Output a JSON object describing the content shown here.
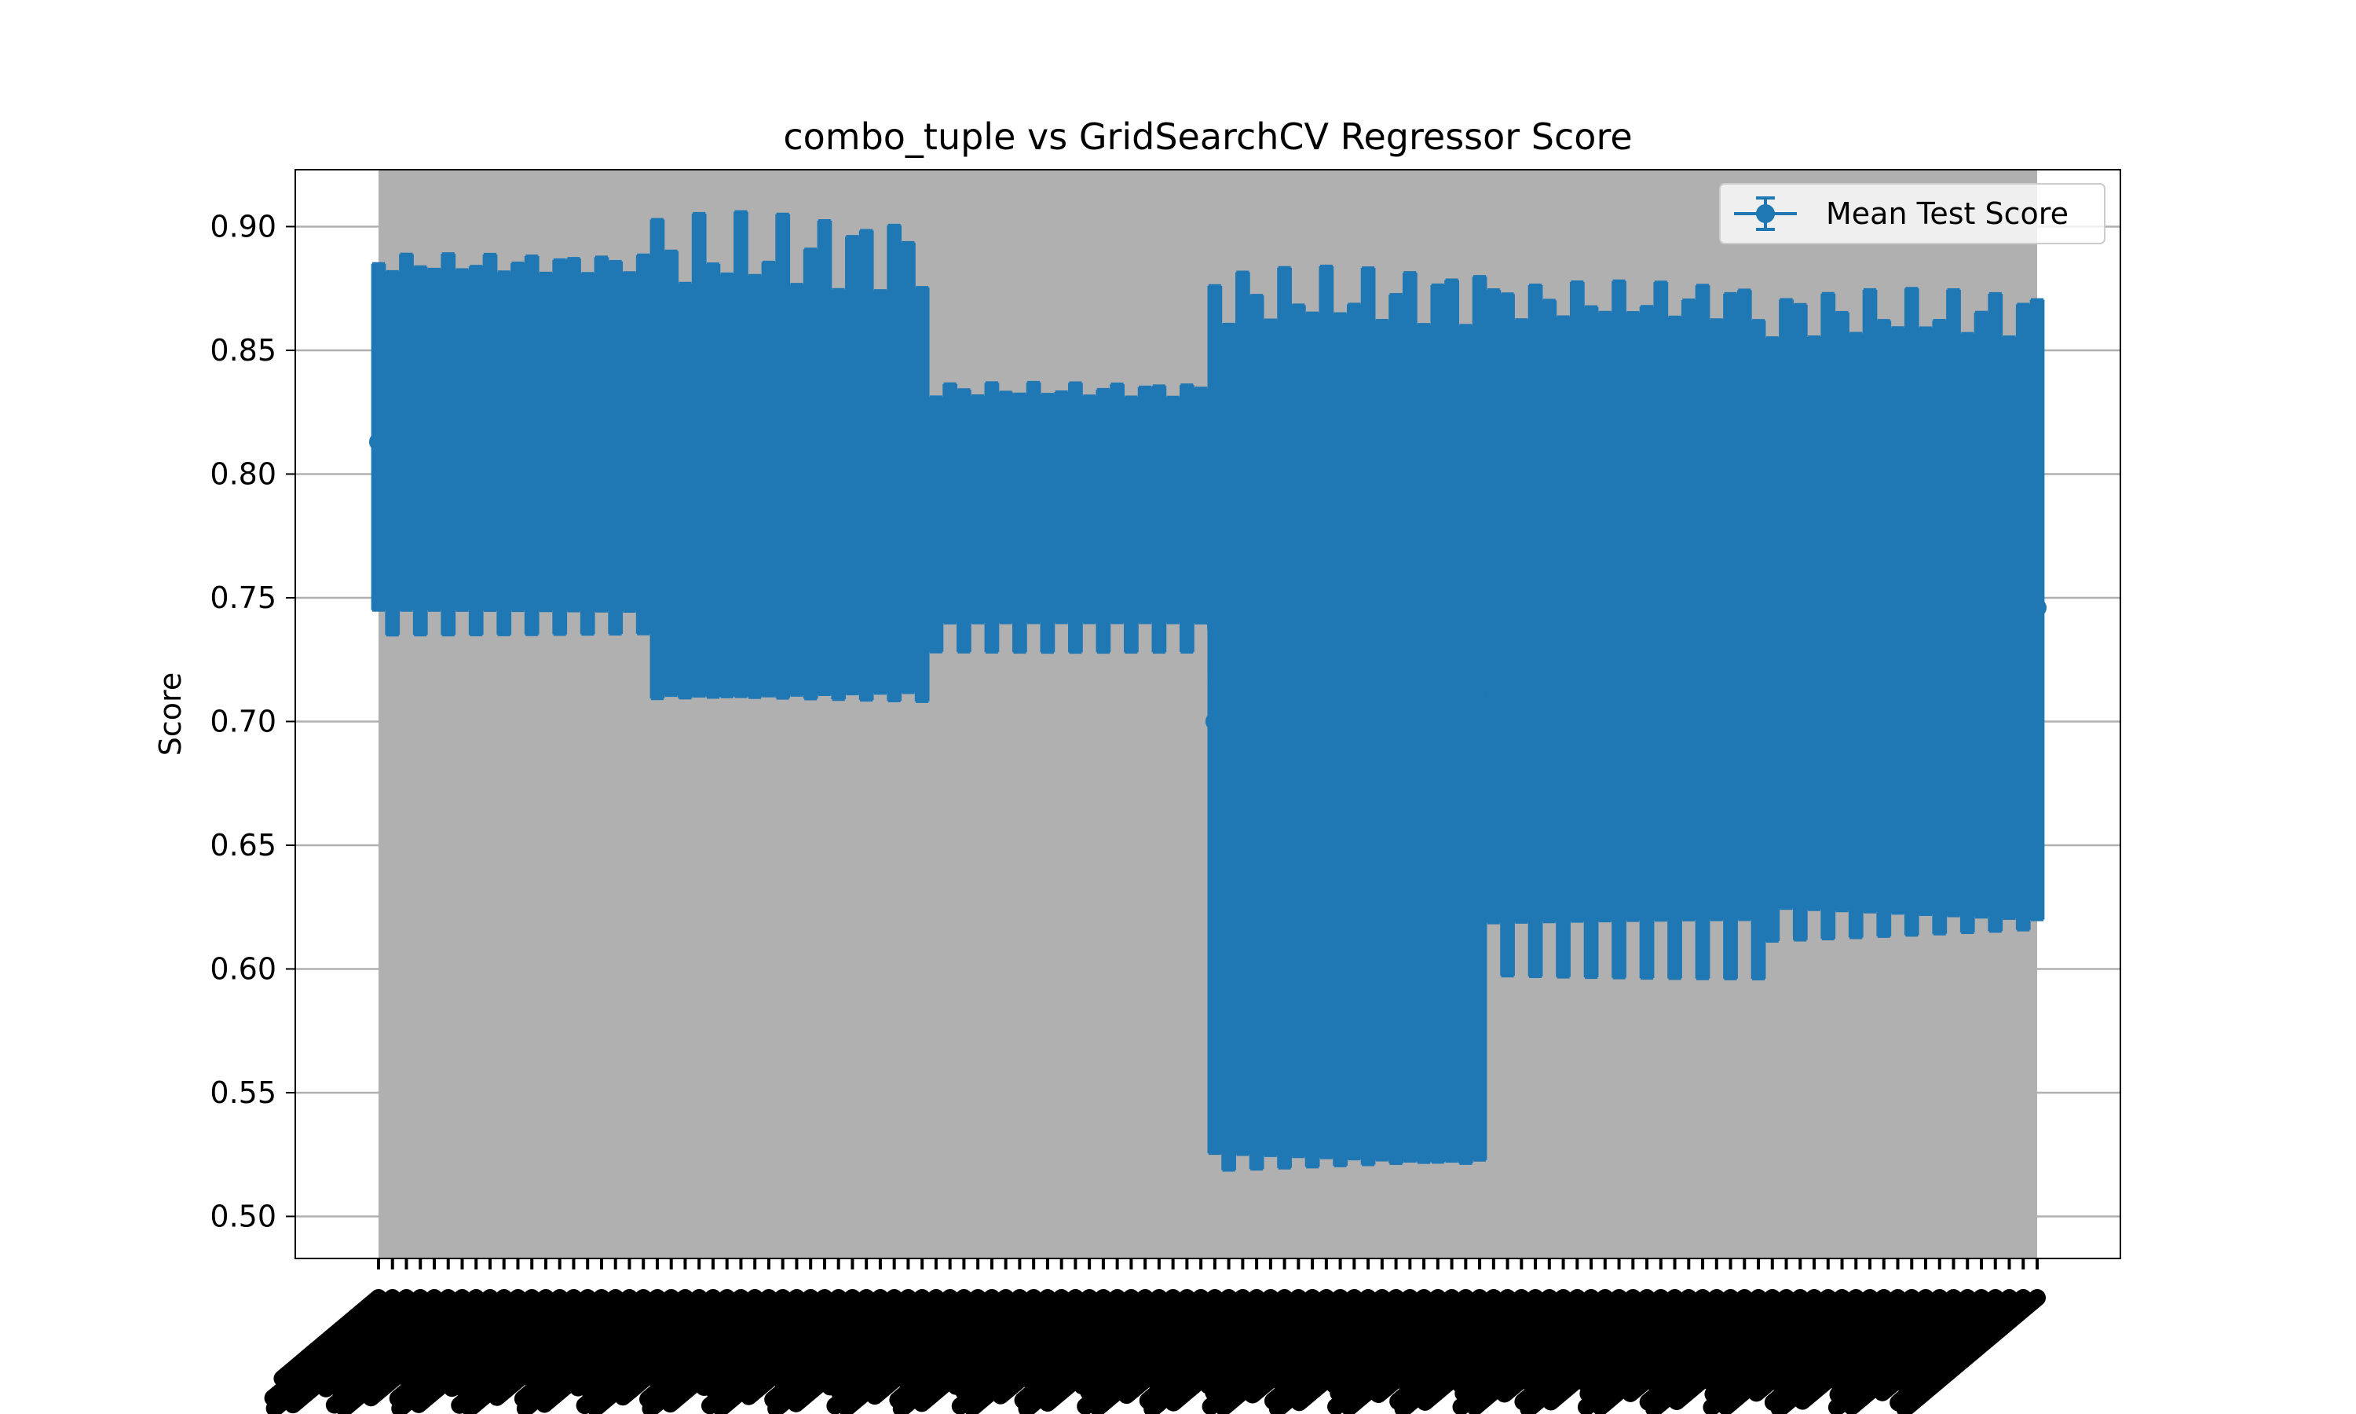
{
  "chart_data": {
    "type": "scatter",
    "title": "combo_tuple vs GridSearchCV Regressor Score",
    "xlabel": "",
    "ylabel": "Score",
    "ylim": [
      0.483,
      0.923
    ],
    "yticks": [
      "0.50",
      "0.55",
      "0.60",
      "0.65",
      "0.70",
      "0.75",
      "0.80",
      "0.85",
      "0.90"
    ],
    "grid": "y",
    "legend": "top-right",
    "colors": {
      "series": "#1f77b4",
      "background": "#b0b0b0",
      "tick_bar": "#000000"
    },
    "series": [
      {
        "name": "Mean Test Score",
        "marker": "circle",
        "error_bars": true,
        "groups": [
          {
            "count": 20,
            "mean": 0.813,
            "upper": 0.885,
            "lower": 0.74,
            "upper_amp": 0.004,
            "lower_amp": 0.005
          },
          {
            "count": 20,
            "mean": 0.792,
            "upper": 0.89,
            "lower": 0.71,
            "upper_amp": 0.016,
            "lower_amp": 0.006
          },
          {
            "count": 20,
            "mean": 0.787,
            "upper": 0.834,
            "lower": 0.734,
            "upper_amp": 0.003,
            "lower_amp": 0.006
          },
          {
            "count": 20,
            "mean": 0.7,
            "upper": 0.872,
            "lower": 0.522,
            "upper_amp": 0.012,
            "lower_amp": 0.01
          },
          {
            "count": 20,
            "mean": 0.742,
            "upper": 0.87,
            "lower": 0.608,
            "upper_amp": 0.008,
            "lower_amp": 0.012
          },
          {
            "count": 20,
            "mean": 0.746,
            "upper": 0.865,
            "lower": 0.618,
            "upper_amp": 0.01,
            "lower_amp": 0.012
          }
        ]
      }
    ]
  }
}
